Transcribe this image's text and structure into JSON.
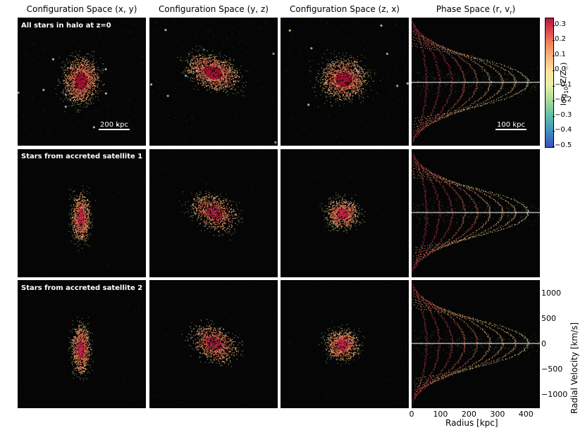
{
  "columns": [
    {
      "title": "Configuration Space (x, y)"
    },
    {
      "title": "Configuration Space (y, z)"
    },
    {
      "title": "Configuration Space (z, x)"
    },
    {
      "title": "Phase Space (r, v",
      "title_sub": "r",
      "title_end": ")"
    }
  ],
  "rows": [
    {
      "label": "All stars in halo at z=0"
    },
    {
      "label": "Stars from accreted satellite 1"
    },
    {
      "label": "Stars from accreted satellite 2"
    }
  ],
  "scalebars": {
    "config": "200 kpc",
    "phase": "100 kpc"
  },
  "colorbar": {
    "label": "log10(Z/Z☉)",
    "label_parts": {
      "prefix": "log",
      "sub": "10",
      "rest": "(Z/Z",
      "sun": "☉",
      "end": ")"
    },
    "ticks": [
      "0.3",
      "0.2",
      "0.1",
      "0.0",
      "−0.1",
      "−0.2",
      "−0.3",
      "−0.4",
      "−0.5"
    ],
    "range": [
      -0.5,
      0.35
    ],
    "colors": [
      "#3b4cc0",
      "#5fbfa6",
      "#e6f1a3",
      "#fbb77a",
      "#d43d4f",
      "#b2183a"
    ]
  },
  "phase_axis": {
    "xlabel": "Radius [kpc]",
    "xticks": [
      "0",
      "100",
      "200",
      "300",
      "400"
    ],
    "ylabel": "Radial Velocity [km/s]",
    "yticks": [
      "1000",
      "500",
      "0",
      "−500",
      "−1000"
    ]
  }
}
